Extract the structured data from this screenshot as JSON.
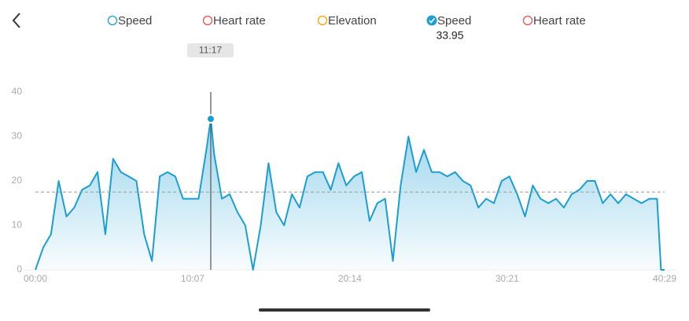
{
  "toggles": [
    {
      "label": "Speed",
      "color": "#1e9fd2",
      "checked": false
    },
    {
      "label": "Heart rate",
      "color": "#e8544e",
      "checked": false
    },
    {
      "label": "Elevation",
      "color": "#f0a800",
      "checked": false
    },
    {
      "label": "Speed",
      "color": "#1e9fd2",
      "checked": true,
      "value": 33.95
    },
    {
      "label": "Heart rate",
      "color": "#e8544e",
      "checked": false
    }
  ],
  "chart_data": {
    "type": "area",
    "color": "#1a9ed4",
    "x": [
      0,
      30,
      60,
      90,
      120,
      150,
      180,
      210,
      240,
      270,
      300,
      330,
      360,
      390,
      420,
      450,
      480,
      510,
      540,
      570,
      600,
      630,
      660,
      677,
      690,
      720,
      750,
      780,
      810,
      840,
      870,
      900,
      930,
      960,
      990,
      1020,
      1050,
      1080,
      1110,
      1140,
      1170,
      1200,
      1230,
      1260,
      1290,
      1320,
      1350,
      1380,
      1410,
      1440,
      1470,
      1500,
      1530,
      1560,
      1590,
      1620,
      1650,
      1680,
      1710,
      1740,
      1770,
      1800,
      1830,
      1860,
      1890,
      1920,
      1950,
      1980,
      2010,
      2040,
      2070,
      2100,
      2130,
      2160,
      2190,
      2220,
      2250,
      2280,
      2310,
      2340,
      2370,
      2400,
      2415,
      2429
    ],
    "series": [
      {
        "name": "Speed",
        "color": "#1a9ed4",
        "values": [
          0,
          5,
          8,
          20,
          12,
          14,
          18,
          19,
          22,
          8,
          25,
          22,
          21,
          20,
          8,
          2,
          21,
          22,
          21,
          16,
          16,
          16,
          27,
          33.95,
          26,
          16,
          17,
          13,
          10,
          0,
          10,
          24,
          13,
          10,
          17,
          14,
          21,
          22,
          22,
          18,
          24,
          19,
          21,
          22,
          11,
          15,
          16,
          2,
          19,
          30,
          22,
          27,
          22,
          22,
          21,
          22,
          20,
          19,
          14,
          16,
          15,
          20,
          21,
          17,
          12,
          19,
          16,
          15,
          16,
          14,
          17,
          18,
          20,
          20,
          15,
          17,
          15,
          17,
          16,
          15,
          16,
          16,
          0,
          0
        ]
      }
    ],
    "xlim": [
      0,
      2429
    ],
    "xticks": [
      {
        "value": 0,
        "label": "00:00"
      },
      {
        "value": 607,
        "label": "10:07"
      },
      {
        "value": 1214,
        "label": "20:14"
      },
      {
        "value": 1821,
        "label": "30:21"
      },
      {
        "value": 2429,
        "label": "40:29"
      }
    ],
    "ylim": [
      0,
      40
    ],
    "yticks": [
      0,
      10,
      20,
      30,
      40
    ],
    "reference_line": 17.5,
    "cursor": {
      "x": 677,
      "label": "11:17"
    },
    "grid": false
  }
}
